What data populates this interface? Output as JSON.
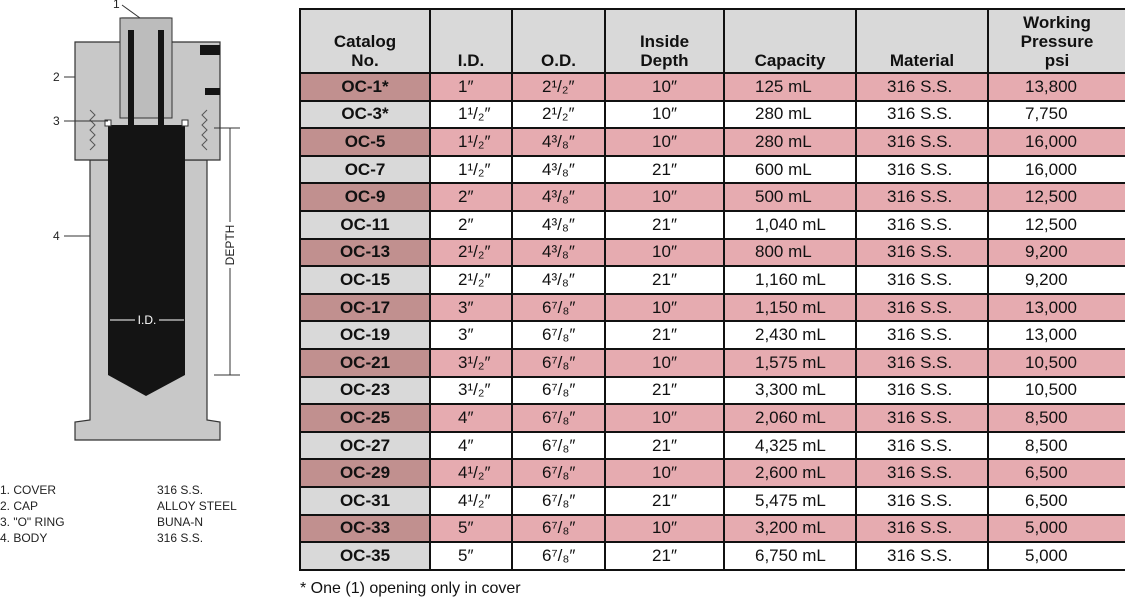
{
  "diagram": {
    "callouts": [
      "1",
      "2",
      "3",
      "4"
    ],
    "depth_label": "DEPTH",
    "id_label": "I.D."
  },
  "parts": [
    {
      "label": "1. COVER",
      "material": "316 S.S."
    },
    {
      "label": "2. CAP",
      "material": "ALLOY STEEL"
    },
    {
      "label": "3. \"O\" RING",
      "material": "BUNA-N"
    },
    {
      "label": "4. BODY",
      "material": "316 S.S."
    }
  ],
  "table": {
    "headers": [
      "Catalog\nNo.",
      "I.D.",
      "O.D.",
      "Inside\nDepth",
      "Capacity",
      "Material",
      "Working\nPressure\npsi"
    ],
    "rows": [
      [
        "OC-1*",
        "1″",
        "2¹/₂″",
        "10″",
        "125 mL",
        "316 S.S.",
        "13,800"
      ],
      [
        "OC-3*",
        "1¹/₂″",
        "2¹/₂″",
        "10″",
        "280 mL",
        "316 S.S.",
        "7,750"
      ],
      [
        "OC-5",
        "1¹/₂″",
        "4³/₈″",
        "10″",
        "280 mL",
        "316 S.S.",
        "16,000"
      ],
      [
        "OC-7",
        "1¹/₂″",
        "4³/₈″",
        "21″",
        "600 mL",
        "316 S.S.",
        "16,000"
      ],
      [
        "OC-9",
        "2″",
        "4³/₈″",
        "10″",
        "500 mL",
        "316 S.S.",
        "12,500"
      ],
      [
        "OC-11",
        "2″",
        "4³/₈″",
        "21″",
        "1,040 mL",
        "316 S.S.",
        "12,500"
      ],
      [
        "OC-13",
        "2¹/₂″",
        "4³/₈″",
        "10″",
        "800 mL",
        "316 S.S.",
        "9,200"
      ],
      [
        "OC-15",
        "2¹/₂″",
        "4³/₈″",
        "21″",
        "1,160 mL",
        "316 S.S.",
        "9,200"
      ],
      [
        "OC-17",
        "3″",
        "6⁷/₈″",
        "10″",
        "1,150 mL",
        "316 S.S.",
        "13,000"
      ],
      [
        "OC-19",
        "3″",
        "6⁷/₈″",
        "21″",
        "2,430 mL",
        "316 S.S.",
        "13,000"
      ],
      [
        "OC-21",
        "3¹/₂″",
        "6⁷/₈″",
        "10″",
        "1,575 mL",
        "316 S.S.",
        "10,500"
      ],
      [
        "OC-23",
        "3¹/₂″",
        "6⁷/₈″",
        "21″",
        "3,300 mL",
        "316 S.S.",
        "10,500"
      ],
      [
        "OC-25",
        "4″",
        "6⁷/₈″",
        "10″",
        "2,060 mL",
        "316 S.S.",
        "8,500"
      ],
      [
        "OC-27",
        "4″",
        "6⁷/₈″",
        "21″",
        "4,325 mL",
        "316 S.S.",
        "8,500"
      ],
      [
        "OC-29",
        "4¹/₂″",
        "6⁷/₈″",
        "10″",
        "2,600 mL",
        "316 S.S.",
        "6,500"
      ],
      [
        "OC-31",
        "4¹/₂″",
        "6⁷/₈″",
        "21″",
        "5,475 mL",
        "316 S.S.",
        "6,500"
      ],
      [
        "OC-33",
        "5″",
        "6⁷/₈″",
        "10″",
        "3,200 mL",
        "316 S.S.",
        "5,000"
      ],
      [
        "OC-35",
        "5″",
        "6⁷/₈″",
        "21″",
        "6,750 mL",
        "316 S.S.",
        "5,000"
      ]
    ]
  },
  "footnote": "* One (1) opening only in cover"
}
